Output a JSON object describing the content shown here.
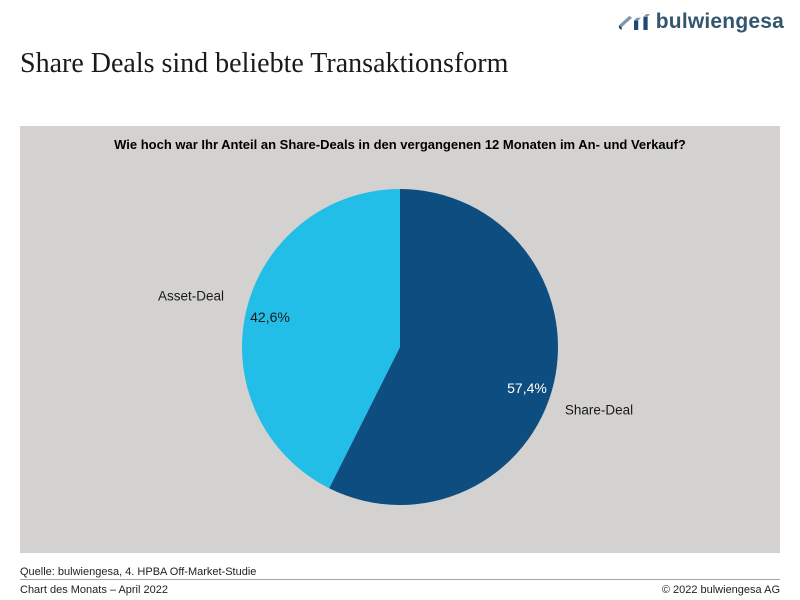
{
  "header": {
    "logo_text": "bulwiengesa",
    "title": "Share Deals sind beliebte Transaktionsform"
  },
  "chart_data": {
    "type": "pie",
    "title": "Wie hoch war Ihr Anteil an Share-Deals in den vergangenen 12 Monaten im An- und Verkauf?",
    "start_angle_deg": 0,
    "direction": "clockwise",
    "legend_position": "outside-labels",
    "slices": [
      {
        "label": "Share-Deal",
        "value": 57.4,
        "display": "57,4%",
        "color": "#0D4D80",
        "value_text_color": "#FFFFFF"
      },
      {
        "label": "Asset-Deal",
        "value": 42.6,
        "display": "42,6%",
        "color": "#22BEE7",
        "value_text_color": "#1A1A1A"
      }
    ]
  },
  "footer": {
    "source": "Quelle: bulwiengesa, 4. HPBA Off-Market-Studie",
    "series_label": "Chart des Monats – April 2022",
    "copyright": "© 2022 bulwiengesa AG"
  },
  "colors": {
    "panel_background": "#D3D2D1",
    "share_deal_blue": "#0D4D80",
    "asset_deal_cyan": "#22BEE7",
    "logo_dark_blue": "#1B4A72",
    "logo_light_blue": "#7E99AF",
    "footer_line": "#9FA8AE"
  }
}
